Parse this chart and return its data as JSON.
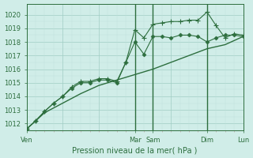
{
  "bg_color": "#d0ede8",
  "grid_color_major": "#a0ccc4",
  "grid_color_minor": "#c0e0dc",
  "line_color1": "#2d6e3e",
  "line_color2": "#2d6e3e",
  "line_color3": "#2d6e3e",
  "xlabel": "Pression niveau de la mer( hPa )",
  "ylim": [
    1011.5,
    1020.8
  ],
  "yticks": [
    1012,
    1013,
    1014,
    1015,
    1016,
    1017,
    1018,
    1019,
    1020
  ],
  "xtick_labels": [
    "Ven",
    "Mar",
    "Sam",
    "Dim",
    "Lun"
  ],
  "xtick_positions": [
    0,
    36,
    42,
    60,
    72
  ],
  "vlines": [
    36,
    42,
    60
  ],
  "series1_x": [
    0,
    6,
    12,
    18,
    24,
    30,
    36,
    42,
    48,
    54,
    60,
    66,
    72
  ],
  "series1_y": [
    1011.6,
    1012.8,
    1013.5,
    1014.2,
    1014.8,
    1015.2,
    1015.6,
    1016.0,
    1016.5,
    1017.0,
    1017.5,
    1017.8,
    1018.4
  ],
  "series2_x": [
    0,
    3,
    6,
    9,
    12,
    15,
    18,
    21,
    24,
    27,
    30,
    33,
    36,
    39,
    42,
    45,
    48,
    51,
    54,
    57,
    60,
    63,
    66,
    69,
    72
  ],
  "series2_y": [
    1011.6,
    1012.2,
    1012.9,
    1013.5,
    1014.0,
    1014.6,
    1015.0,
    1015.0,
    1015.2,
    1015.2,
    1015.0,
    1016.5,
    1018.0,
    1017.1,
    1018.4,
    1018.4,
    1018.3,
    1018.5,
    1018.5,
    1018.4,
    1018.0,
    1018.3,
    1018.5,
    1018.5,
    1018.4
  ],
  "series3_x": [
    0,
    3,
    6,
    9,
    12,
    15,
    18,
    21,
    24,
    27,
    30,
    33,
    36,
    39,
    42,
    45,
    48,
    51,
    54,
    57,
    60,
    63,
    66,
    69,
    72
  ],
  "series3_y": [
    1011.6,
    1012.2,
    1012.9,
    1013.5,
    1014.0,
    1014.7,
    1015.1,
    1015.1,
    1015.3,
    1015.3,
    1015.1,
    1016.5,
    1018.9,
    1018.3,
    1019.3,
    1019.4,
    1019.5,
    1019.5,
    1019.6,
    1019.6,
    1020.2,
    1019.2,
    1018.3,
    1018.6,
    1018.5
  ]
}
